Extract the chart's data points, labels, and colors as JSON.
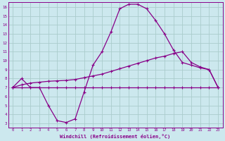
{
  "xlabel": "Windchill (Refroidissement éolien,°C)",
  "bg_color": "#cce8ee",
  "grid_color": "#aacccc",
  "line_color": "#880088",
  "xlim": [
    -0.5,
    23.5
  ],
  "ylim": [
    2.5,
    16.5
  ],
  "xticks": [
    0,
    1,
    2,
    3,
    4,
    5,
    6,
    7,
    8,
    9,
    10,
    11,
    12,
    13,
    14,
    15,
    16,
    17,
    18,
    19,
    20,
    21,
    22,
    23
  ],
  "yticks": [
    3,
    4,
    5,
    6,
    7,
    8,
    9,
    10,
    11,
    12,
    13,
    14,
    15,
    16
  ],
  "curve1_x": [
    0,
    1,
    2,
    3,
    4,
    5,
    6,
    7,
    8,
    9,
    10,
    11,
    12,
    13,
    14,
    15,
    16,
    17,
    18,
    19,
    20,
    21,
    22,
    23
  ],
  "curve1_y": [
    7.0,
    8.0,
    7.0,
    7.0,
    5.0,
    3.3,
    3.1,
    3.5,
    6.5,
    9.5,
    11.0,
    13.2,
    15.8,
    16.3,
    16.3,
    15.8,
    14.5,
    13.0,
    11.2,
    9.8,
    9.5,
    9.2,
    9.0,
    7.0
  ],
  "curve2_x": [
    0,
    1,
    2,
    3,
    4,
    5,
    6,
    7,
    8,
    9,
    10,
    11,
    12,
    13,
    14,
    15,
    16,
    17,
    18,
    19,
    20,
    21,
    22,
    23
  ],
  "curve2_y": [
    7.0,
    7.3,
    7.5,
    7.6,
    7.7,
    7.75,
    7.8,
    7.9,
    8.1,
    8.3,
    8.5,
    8.8,
    9.1,
    9.4,
    9.7,
    10.0,
    10.3,
    10.5,
    10.8,
    11.0,
    9.8,
    9.3,
    9.0,
    7.0
  ],
  "curve3_x": [
    0,
    1,
    2,
    3,
    4,
    5,
    6,
    7,
    8,
    9,
    10,
    11,
    12,
    13,
    14,
    15,
    16,
    17,
    18,
    19,
    20,
    21,
    22,
    23
  ],
  "curve3_y": [
    7.0,
    7.0,
    7.0,
    7.0,
    7.0,
    7.0,
    7.0,
    7.0,
    7.0,
    7.0,
    7.0,
    7.0,
    7.0,
    7.0,
    7.0,
    7.0,
    7.0,
    7.0,
    7.0,
    7.0,
    7.0,
    7.0,
    7.0,
    7.0
  ]
}
